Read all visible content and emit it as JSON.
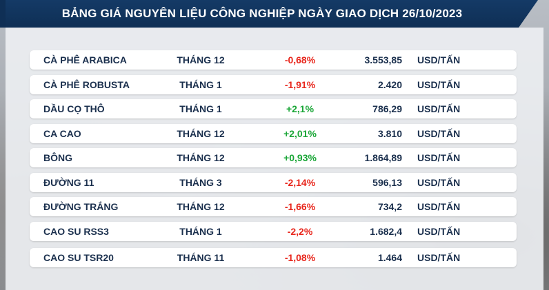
{
  "title": "BẢNG GIÁ NGUYÊN LIỆU CÔNG NGHIỆP NGÀY GIAO DỊCH 26/10/2023",
  "colors": {
    "header": "#143a66",
    "negative": "#e8261c",
    "positive": "#1aa637",
    "text": "#1a2f4d"
  },
  "rows": [
    {
      "name": "CÀ PHÊ ARABICA",
      "month": "THÁNG 12",
      "change": "-0,68%",
      "price": "3.553,85",
      "unit": "USD/TẤN",
      "direction": "down"
    },
    {
      "name": "CÀ PHÊ ROBUSTA",
      "month": "THÁNG 1",
      "change": "-1,91%",
      "price": "2.420",
      "unit": "USD/TẤN",
      "direction": "down"
    },
    {
      "name": "DẦU CỌ THÔ",
      "month": "THÁNG 1",
      "change": "+2,1%",
      "price": "786,29",
      "unit": "USD/TẤN",
      "direction": "up"
    },
    {
      "name": "CA CAO",
      "month": "THÁNG 12",
      "change": "+2,01%",
      "price": "3.810",
      "unit": "USD/TẤN",
      "direction": "up"
    },
    {
      "name": "BÔNG",
      "month": "THÁNG 12",
      "change": "+0,93%",
      "price": "1.864,89",
      "unit": "USD/TẤN",
      "direction": "up"
    },
    {
      "name": "ĐƯỜNG 11",
      "month": "THÁNG 3",
      "change": "-2,14%",
      "price": "596,13",
      "unit": "USD/TẤN",
      "direction": "down"
    },
    {
      "name": "ĐƯỜNG TRẮNG",
      "month": "THÁNG 12",
      "change": "-1,66%",
      "price": "734,2",
      "unit": "USD/TẤN",
      "direction": "down"
    },
    {
      "name": "CAO SU RSS3",
      "month": "THÁNG 1",
      "change": "-2,2%",
      "price": "1.682,4",
      "unit": "USD/TẤN",
      "direction": "down"
    },
    {
      "name": "CAO SU TSR20",
      "month": "THÁNG 11",
      "change": "-1,08%",
      "price": "1.464",
      "unit": "USD/TẤN",
      "direction": "down"
    }
  ]
}
